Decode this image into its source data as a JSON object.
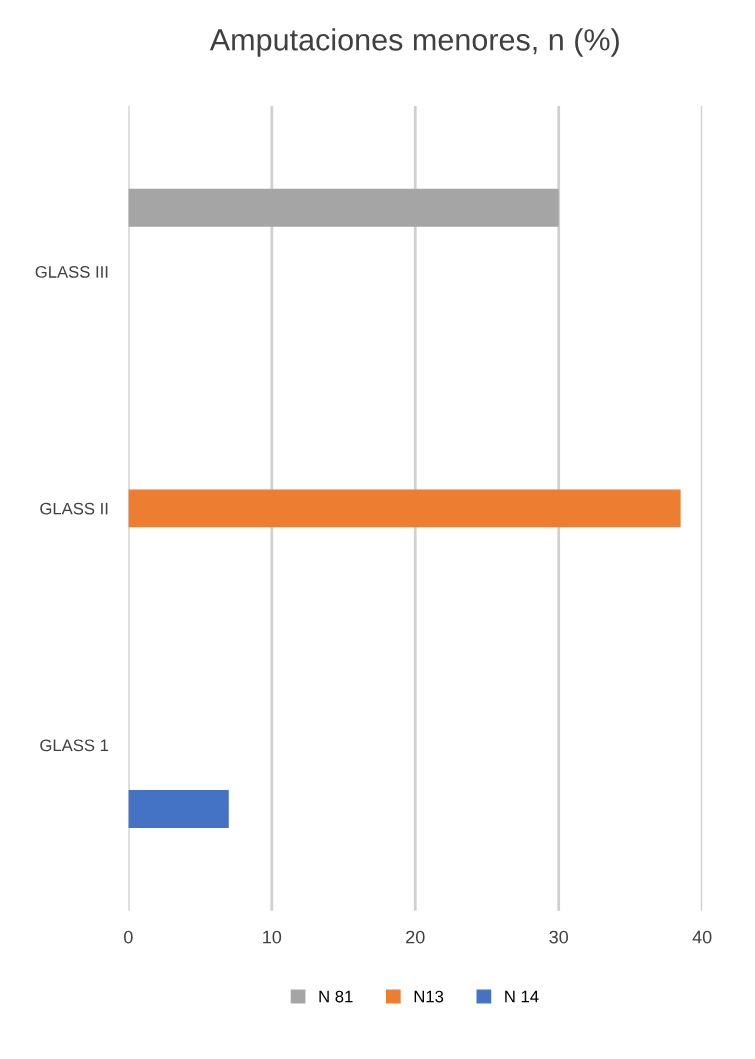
{
  "chart_data": {
    "type": "bar",
    "orientation": "horizontal",
    "title": "Amputaciones menores, n (%)",
    "categories": [
      "GLASS III",
      "GLASS II",
      "GLASS 1"
    ],
    "series": [
      {
        "name": "N 81",
        "color": "#a5a5a5",
        "values": [
          30,
          null,
          null
        ]
      },
      {
        "name": "N13",
        "color": "#ed7d31",
        "values": [
          null,
          38.5,
          null
        ]
      },
      {
        "name": "N 14",
        "color": "#4472c4",
        "values": [
          null,
          null,
          7
        ]
      }
    ],
    "xlim": [
      0,
      40
    ],
    "xticks": [
      0,
      10,
      20,
      30,
      40
    ],
    "grid": "x",
    "legend": "bottom"
  }
}
